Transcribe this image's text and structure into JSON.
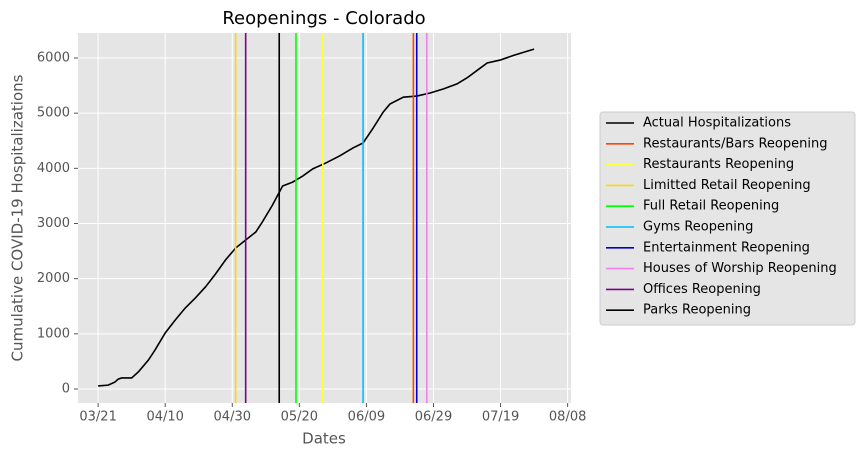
{
  "chart_data": {
    "type": "line",
    "title": "Reopenings - Colorado",
    "x_label": "Dates",
    "y_label": "Cumulative COVID-19 Hospitalizations",
    "xlim": [
      "03/15",
      "08/09"
    ],
    "xticks": [
      "03/21",
      "04/10",
      "04/30",
      "05/20",
      "06/09",
      "06/29",
      "07/19",
      "08/08"
    ],
    "ylim": [
      -254,
      6453
    ],
    "yticks": [
      0,
      1000,
      2000,
      3000,
      4000,
      5000,
      6000
    ],
    "grid": true,
    "legend": "outside right",
    "series": [
      {
        "name": "Actual Hospitalizations",
        "color": "#000000",
        "x": [
          "03/21",
          "03/24",
          "03/26",
          "03/27",
          "03/28",
          "03/31",
          "04/02",
          "04/05",
          "04/07",
          "04/10",
          "04/13",
          "04/16",
          "04/19",
          "04/22",
          "04/25",
          "04/28",
          "05/01",
          "05/04",
          "05/07",
          "05/09",
          "05/12",
          "05/15",
          "05/18",
          "05/21",
          "05/24",
          "05/28",
          "06/01",
          "06/05",
          "06/08",
          "06/11",
          "06/14",
          "06/16",
          "06/20",
          "06/24",
          "06/28",
          "07/02",
          "07/06",
          "07/09",
          "07/13",
          "07/15",
          "07/19",
          "07/23",
          "07/27",
          "07/29"
        ],
        "values": [
          55,
          70,
          125,
          180,
          200,
          200,
          310,
          525,
          710,
          1015,
          1250,
          1470,
          1650,
          1850,
          2085,
          2340,
          2555,
          2700,
          2845,
          3030,
          3335,
          3680,
          3750,
          3860,
          3990,
          4100,
          4225,
          4370,
          4460,
          4730,
          5020,
          5165,
          5290,
          5310,
          5365,
          5440,
          5530,
          5640,
          5820,
          5910,
          5965,
          6050,
          6125,
          6160
        ]
      }
    ],
    "vlines": [
      {
        "name": "Restaurants/Bars Reopening",
        "color": "#ff4500",
        "x": "06/23"
      },
      {
        "name": "Restaurants Reopening",
        "color": "#ffff33",
        "x": "05/27"
      },
      {
        "name": "Limitted Retail Reopening",
        "color": "#ffd700",
        "x": "05/01"
      },
      {
        "name": "Full Retail Reopening",
        "color": "#00ff00",
        "x": "05/19"
      },
      {
        "name": "Gyms Reopening",
        "color": "#00bfff",
        "x": "06/08"
      },
      {
        "name": "Entertainment Reopening",
        "color": "#0000cd",
        "x": "06/24"
      },
      {
        "name": "Houses of Worship Reopening",
        "color": "#ee82ee",
        "x": "06/27"
      },
      {
        "name": "Offices Reopening",
        "color": "#800080",
        "x": "05/04"
      },
      {
        "name": "Parks Reopening",
        "color": "#000000",
        "x": "05/14"
      }
    ]
  }
}
